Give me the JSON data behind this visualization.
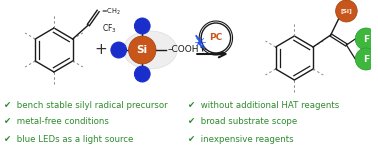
{
  "background_color": "#ffffff",
  "check_color": "#2e8b2e",
  "check_items_left": [
    "bench stable silyl radical precursor",
    "metal-free conditions",
    "blue LEDs as a light source"
  ],
  "check_items_right": [
    "without additional HAT reagents",
    "broad substrate scope",
    "inexpensive reagents"
  ],
  "text_fontsize": 6.2,
  "si_color": "#c8561a",
  "f_color": "#3db83d",
  "pc_color": "#c8561a",
  "blue_dot_color": "#1a2ecc",
  "line_color": "#1a1a1a",
  "dash_color": "#888888"
}
